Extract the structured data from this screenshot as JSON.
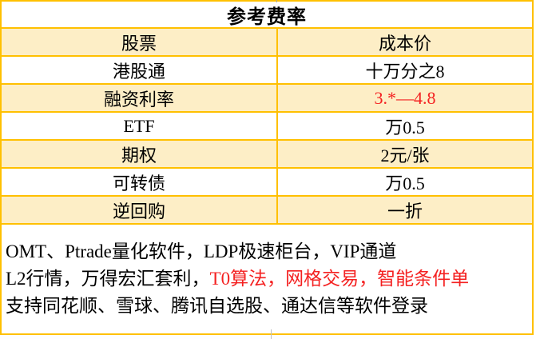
{
  "table": {
    "title": "参考费率",
    "rows": [
      {
        "label": "股票",
        "value": "成本价"
      },
      {
        "label": "港股通",
        "value": "十万分之8"
      },
      {
        "label": "融资利率",
        "value": "3.*—4.8"
      },
      {
        "label": "ETF",
        "value": "万0.5"
      },
      {
        "label": "期权",
        "value": "2元/张"
      },
      {
        "label": "可转债",
        "value": "万0.5"
      },
      {
        "label": "逆回购",
        "value": "一折"
      }
    ]
  },
  "notes": {
    "line1": "OMT、Ptrade量化软件，LDP极速柜台，VIP通道",
    "line2_black": "L2行情，万得宏汇套利，",
    "line2_red": "T0算法，网格交易，智能条件单",
    "line3": "支持同花顺、雪球、腾讯自选股、通达信等软件登录"
  },
  "colors": {
    "border_gold": "#FFC000",
    "row_cream": "#FDEEC6",
    "highlight_red": "#F42121",
    "text_black": "#000000"
  }
}
